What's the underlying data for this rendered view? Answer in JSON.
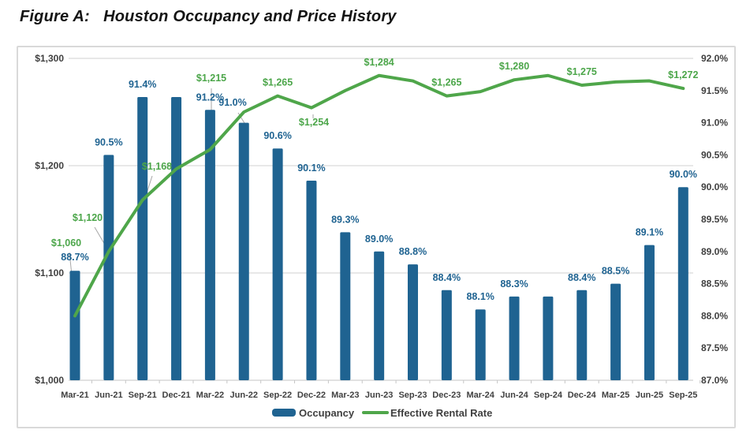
{
  "title": "Figure A:   Houston Occupancy and Price History",
  "chart_data": {
    "type": "bar",
    "subtype": "combo-bar-line",
    "categories": [
      "Mar-21",
      "Jun-21",
      "Sep-21",
      "Dec-21",
      "Mar-22",
      "Jun-22",
      "Sep-22",
      "Dec-22",
      "Mar-23",
      "Jun-23",
      "Sep-23",
      "Dec-23",
      "Mar-24",
      "Jun-24",
      "Sep-24",
      "Dec-24",
      "Mar-25",
      "Jun-25",
      "Sep-25"
    ],
    "series": [
      {
        "name": "Occupancy",
        "type": "bar",
        "axis": "right",
        "color": "#1f6391",
        "values": [
          88.7,
          90.5,
          91.4,
          91.4,
          91.2,
          91.0,
          90.6,
          90.1,
          89.3,
          89.0,
          88.8,
          88.4,
          88.1,
          88.3,
          88.3,
          88.4,
          88.5,
          89.1,
          90.0
        ],
        "labels": [
          "88.7%",
          "90.5%",
          "91.4%",
          null,
          "91.2%",
          "91.0%",
          "90.6%",
          "90.1%",
          "89.3%",
          "89.0%",
          "88.8%",
          "88.4%",
          "88.1%",
          "88.3%",
          null,
          "88.4%",
          "88.5%",
          "89.1%",
          "90.0%"
        ]
      },
      {
        "name": "Effective Rental Rate",
        "type": "line",
        "axis": "left",
        "color": "#4fa64a",
        "values": [
          1060,
          1120,
          1168,
          1197,
          1215,
          1250,
          1265,
          1254,
          1270,
          1284,
          1279,
          1265,
          1269,
          1280,
          1284,
          1275,
          1278,
          1279,
          1272
        ],
        "labels": [
          "$1,060",
          "$1,120",
          "$1,168",
          null,
          "$1,215",
          null,
          "$1,265",
          "$1,254",
          null,
          "$1,284",
          null,
          "$1,265",
          null,
          "$1,280",
          null,
          "$1,275",
          null,
          null,
          "$1,272"
        ]
      }
    ],
    "left_axis": {
      "ticks": [
        "$1,300",
        "$1,200",
        "$1,100",
        "$1,000"
      ],
      "min": 1000,
      "max": 1300,
      "label": ""
    },
    "right_axis": {
      "ticks": [
        "92.0%",
        "91.5%",
        "91.0%",
        "90.5%",
        "90.0%",
        "89.5%",
        "89.0%",
        "88.5%",
        "88.0%",
        "87.5%",
        "87.0%"
      ],
      "min": 87.0,
      "max": 92.0,
      "label": ""
    },
    "xlabel": "",
    "ylabel": "",
    "grid": true,
    "legend_position": "bottom",
    "legend": [
      {
        "label": "Occupancy",
        "swatch": "bar",
        "color": "#1f6391"
      },
      {
        "label": "Effective Rental Rate",
        "swatch": "line",
        "color": "#4fa64a"
      }
    ],
    "colors": {
      "bar": "#1f6391",
      "bar_label": "#1f6391",
      "line": "#4fa64a",
      "line_label": "#4ca64a",
      "axis_text": "#404040",
      "gridline": "#d9d9d9",
      "leader": "#a6a6a6",
      "legend_text": "#3f3f3f"
    }
  }
}
